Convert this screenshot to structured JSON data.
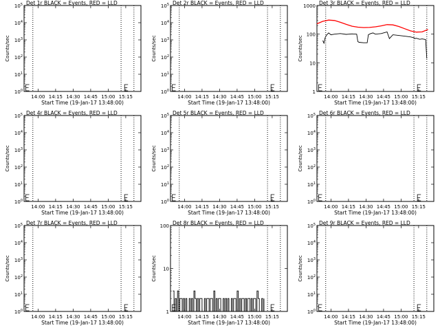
{
  "chart_data": [
    {
      "type": "line",
      "title": "Det 1r BLACK = Events, RED = LLD",
      "xlabel": "Start Time (19-Jan-17 13:48:00)",
      "ylabel": "Counts/sec",
      "y_scale": "log",
      "ylim": [
        1,
        100000
      ],
      "y_ticks": [
        "10^0",
        "10^1",
        "10^2",
        "10^3",
        "10^4",
        "10^5"
      ],
      "x_ticks": [
        "14:00",
        "14:15",
        "14:30",
        "14:45",
        "15:00",
        "15:15"
      ],
      "xlim_minutes": [
        0,
        100
      ],
      "vlines_minutes": [
        7.5,
        83,
        94
      ],
      "marker_minute": 86,
      "series": []
    },
    {
      "type": "line",
      "title": "Det 2r BLACK = Events, RED = LLD",
      "xlabel": "Start Time (19-Jan-17 13:48:00)",
      "ylabel": "Counts/sec",
      "y_scale": "log",
      "ylim": [
        1,
        100000
      ],
      "y_ticks": [
        "10^0",
        "10^1",
        "10^2",
        "10^3",
        "10^4",
        "10^5"
      ],
      "x_ticks": [
        "14:00",
        "14:15",
        "14:30",
        "14:45",
        "15:00",
        "15:15"
      ],
      "xlim_minutes": [
        0,
        100
      ],
      "vlines_minutes": [
        7.5,
        83,
        94
      ],
      "marker_minute": 86,
      "series": []
    },
    {
      "type": "line",
      "title": "Det 3r BLACK = Events, RED = LLD",
      "xlabel": "Start Time (19-Jan-17 13:48:00)",
      "ylabel": "Counts/sec",
      "y_scale": "log",
      "ylim": [
        1,
        1000
      ],
      "y_ticks": [
        "1",
        "10",
        "100",
        "1000"
      ],
      "x_ticks": [
        "14:00",
        "14:15",
        "14:30",
        "14:45",
        "15:00",
        "15:15"
      ],
      "xlim_minutes": [
        0,
        100
      ],
      "vlines_minutes": [
        7.5,
        83,
        94
      ],
      "marker_minute": 86,
      "series": [
        {
          "color": "#ff0000",
          "x": [
            0,
            5,
            10,
            15,
            20,
            25,
            30,
            35,
            40,
            45,
            50,
            55,
            60,
            65,
            70,
            75,
            80,
            85,
            90,
            95
          ],
          "y": [
            230,
            280,
            310,
            300,
            260,
            220,
            190,
            175,
            170,
            172,
            180,
            195,
            215,
            210,
            185,
            155,
            130,
            118,
            120,
            145
          ]
        },
        {
          "color": "#000000",
          "x": [
            5,
            6,
            7,
            8,
            9,
            10,
            12,
            15,
            20,
            25,
            30,
            34,
            35,
            36,
            40,
            43,
            44,
            45,
            46,
            48,
            50,
            55,
            60,
            62,
            65,
            70,
            75,
            80,
            83,
            84,
            85,
            88,
            90,
            93,
            94
          ],
          "y": [
            60,
            48,
            75,
            90,
            100,
            110,
            95,
            100,
            105,
            98,
            102,
            100,
            55,
            52,
            50,
            50,
            95,
            100,
            105,
            110,
            100,
            105,
            120,
            70,
            95,
            90,
            85,
            80,
            75,
            70,
            72,
            66,
            68,
            65,
            14
          ]
        }
      ]
    },
    {
      "type": "line",
      "title": "Det 4r BLACK = Events, RED = LLD",
      "xlabel": "Start Time (19-Jan-17 13:48:00)",
      "ylabel": "Counts/sec",
      "y_scale": "log",
      "ylim": [
        1,
        100000
      ],
      "y_ticks": [
        "10^0",
        "10^1",
        "10^2",
        "10^3",
        "10^4",
        "10^5"
      ],
      "x_ticks": [
        "14:00",
        "14:15",
        "14:30",
        "14:45",
        "15:00",
        "15:15"
      ],
      "xlim_minutes": [
        0,
        100
      ],
      "vlines_minutes": [
        7.5,
        83,
        94
      ],
      "marker_minute": 86,
      "series": []
    },
    {
      "type": "line",
      "title": "Det 5r BLACK = Events, RED = LLD",
      "xlabel": "Start Time (19-Jan-17 13:48:00)",
      "ylabel": "Counts/sec",
      "y_scale": "log",
      "ylim": [
        1,
        100000
      ],
      "y_ticks": [
        "10^0",
        "10^1",
        "10^2",
        "10^3",
        "10^4",
        "10^5"
      ],
      "x_ticks": [
        "14:00",
        "14:15",
        "14:30",
        "14:45",
        "15:00",
        "15:15"
      ],
      "xlim_minutes": [
        0,
        100
      ],
      "vlines_minutes": [
        7.5,
        83,
        94
      ],
      "marker_minute": 86,
      "series": []
    },
    {
      "type": "line",
      "title": "Det 6r BLACK = Events, RED = LLD",
      "xlabel": "Start Time (19-Jan-17 13:48:00)",
      "ylabel": "Counts/sec",
      "y_scale": "log",
      "ylim": [
        1,
        100000
      ],
      "y_ticks": [
        "10^0",
        "10^1",
        "10^2",
        "10^3",
        "10^4",
        "10^5"
      ],
      "x_ticks": [
        "14:00",
        "14:15",
        "14:30",
        "14:45",
        "15:00",
        "15:15"
      ],
      "xlim_minutes": [
        0,
        100
      ],
      "vlines_minutes": [
        7.5,
        83,
        94
      ],
      "marker_minute": 86,
      "series": []
    },
    {
      "type": "line",
      "title": "Det 7r BLACK = Events, RED = LLD",
      "xlabel": "Start Time (19-Jan-17 13:48:00)",
      "ylabel": "Counts/sec",
      "y_scale": "log",
      "ylim": [
        1,
        100000
      ],
      "y_ticks": [
        "10^0",
        "10^1",
        "10^2",
        "10^3",
        "10^4",
        "10^5"
      ],
      "x_ticks": [
        "14:00",
        "14:15",
        "14:30",
        "14:45",
        "15:00",
        "15:15"
      ],
      "xlim_minutes": [
        0,
        100
      ],
      "vlines_minutes": [
        7.5,
        83,
        94
      ],
      "marker_minute": 86,
      "series": []
    },
    {
      "type": "line",
      "title": "Det 8r BLACK = Events, RED = LLD",
      "xlabel": "Start Time (19-Jan-17 13:48:00)",
      "ylabel": "Counts/sec",
      "y_scale": "log",
      "ylim": [
        1,
        100
      ],
      "y_ticks": [
        "1",
        "10",
        "100"
      ],
      "x_ticks": [
        "14:00",
        "14:15",
        "14:30",
        "14:45",
        "15:00",
        "15:15"
      ],
      "xlim_minutes": [
        0,
        100
      ],
      "vlines_minutes": [
        7.5,
        83,
        94
      ],
      "marker_minute": 86,
      "series": [
        {
          "color": "#000000",
          "x": [
            2,
            3,
            4,
            5,
            6,
            7,
            8,
            9,
            10,
            11,
            12,
            13,
            14,
            15,
            16,
            17,
            18,
            19,
            20,
            21,
            22,
            23,
            24,
            25,
            26,
            27,
            28,
            29,
            30,
            31,
            32,
            33,
            34,
            35,
            36,
            37,
            38,
            39,
            40,
            41,
            42,
            43,
            44,
            45,
            46,
            47,
            48,
            49,
            50,
            51,
            52,
            53,
            54,
            55,
            56,
            57,
            58,
            59,
            60,
            61,
            62,
            63,
            64,
            65,
            66,
            67,
            68,
            69,
            70,
            71,
            72,
            73,
            74,
            75,
            76,
            77,
            78,
            79,
            80
          ],
          "y": [
            3,
            1,
            2,
            1,
            3,
            1,
            2,
            2,
            1,
            2,
            1,
            2,
            1,
            1,
            2,
            1,
            2,
            1,
            3,
            2,
            1,
            2,
            1,
            2,
            2,
            1,
            1,
            2,
            1,
            2,
            2,
            1,
            2,
            2,
            1,
            3,
            1,
            2,
            1,
            2,
            2,
            1,
            1,
            2,
            1,
            2,
            1,
            2,
            1,
            1,
            2,
            1,
            2,
            2,
            1,
            3,
            1,
            2,
            1,
            2,
            2,
            1,
            2,
            1,
            2,
            2,
            1,
            2,
            1,
            2,
            2,
            1,
            3,
            2,
            1,
            1,
            2,
            1,
            2
          ]
        }
      ]
    },
    {
      "type": "line",
      "title": "Det 9r BLACK = Events, RED = LLD",
      "xlabel": "Start Time (19-Jan-17 13:48:00)",
      "ylabel": "Counts/sec",
      "y_scale": "log",
      "ylim": [
        1,
        100000
      ],
      "y_ticks": [
        "10^0",
        "10^1",
        "10^2",
        "10^3",
        "10^4",
        "10^5"
      ],
      "x_ticks": [
        "14:00",
        "14:15",
        "14:30",
        "14:45",
        "15:00",
        "15:15"
      ],
      "xlim_minutes": [
        0,
        100
      ],
      "vlines_minutes": [
        7.5,
        83,
        94
      ],
      "marker_minute": 86,
      "series": []
    }
  ]
}
